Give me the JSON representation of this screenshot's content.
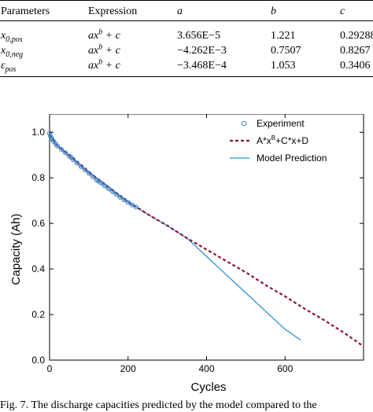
{
  "table": {
    "headers": {
      "parameters": "Parameters",
      "expression": "Expression",
      "a": "a",
      "b": "b",
      "c": "c"
    },
    "rows": [
      {
        "param_base": "x",
        "param_sub": "0,pos",
        "expr_base": "ax",
        "expr_sup": "b",
        "expr_tail": " + c",
        "a": "3.656E−5",
        "b": "1.221",
        "c": "0.29288"
      },
      {
        "param_base": "x",
        "param_sub": "0,neg",
        "expr_base": "ax",
        "expr_sup": "b",
        "expr_tail": " + c",
        "a": "−4.262E−3",
        "b": "0.7507",
        "c": "0.8267"
      },
      {
        "param_base": "ε",
        "param_sub": "pos",
        "expr_base": "ax",
        "expr_sup": "b",
        "expr_tail": " + c",
        "a": "−3.468E−4",
        "b": "1.053",
        "c": "0.3406"
      }
    ]
  },
  "chart_data": {
    "type": "line",
    "xlabel": "Cycles",
    "ylabel": "Capacity (Ah)",
    "xlim": [
      0,
      800
    ],
    "ylim": [
      0.0,
      1.08
    ],
    "x_ticks": [
      "0",
      "200",
      "400",
      "600"
    ],
    "y_ticks": [
      "0.0",
      "0.2",
      "0.4",
      "0.6",
      "0.8",
      "1.0"
    ],
    "legend_position": "top-right",
    "legend": [
      {
        "label": "Experiment",
        "style": "circle",
        "color": "#3b7fc4"
      },
      {
        "label_pre": "A*x",
        "label_sup": "B",
        "label_post": "+C*x+D",
        "style": "dashed",
        "color": "#8a1538"
      },
      {
        "label": "Model Prediction",
        "style": "line",
        "color": "#2f8fd6"
      }
    ],
    "series": [
      {
        "name": "Experiment",
        "x": [
          0,
          2,
          4,
          6,
          10,
          15,
          20,
          30,
          40,
          50,
          55,
          60,
          70,
          80,
          90,
          100,
          110,
          120,
          125,
          130,
          140,
          150,
          160,
          170,
          180,
          190,
          200,
          210,
          220
        ],
        "y": [
          0.995,
          0.985,
          0.975,
          0.97,
          0.96,
          0.95,
          0.94,
          0.925,
          0.91,
          0.895,
          0.89,
          0.88,
          0.865,
          0.85,
          0.835,
          0.82,
          0.805,
          0.79,
          0.785,
          0.778,
          0.765,
          0.752,
          0.74,
          0.727,
          0.715,
          0.703,
          0.692,
          0.681,
          0.672
        ]
      },
      {
        "name": "A*x^B+C*x+D",
        "x": [
          0,
          20,
          50,
          100,
          150,
          200,
          250,
          300,
          350,
          400,
          450,
          500,
          550,
          600,
          650,
          700,
          750,
          800
        ],
        "y": [
          0.99,
          0.94,
          0.9,
          0.825,
          0.76,
          0.695,
          0.64,
          0.59,
          0.535,
          0.485,
          0.435,
          0.385,
          0.33,
          0.28,
          0.225,
          0.175,
          0.12,
          0.06
        ]
      },
      {
        "name": "Model Prediction",
        "x": [
          0,
          20,
          50,
          100,
          150,
          200,
          250,
          300,
          350,
          400,
          450,
          500,
          550,
          600,
          640
        ],
        "y": [
          0.99,
          0.94,
          0.9,
          0.825,
          0.76,
          0.695,
          0.64,
          0.59,
          0.535,
          0.455,
          0.375,
          0.295,
          0.215,
          0.135,
          0.088
        ]
      }
    ]
  },
  "caption": "Fig. 7. The discharge capacities predicted by the model compared to the"
}
